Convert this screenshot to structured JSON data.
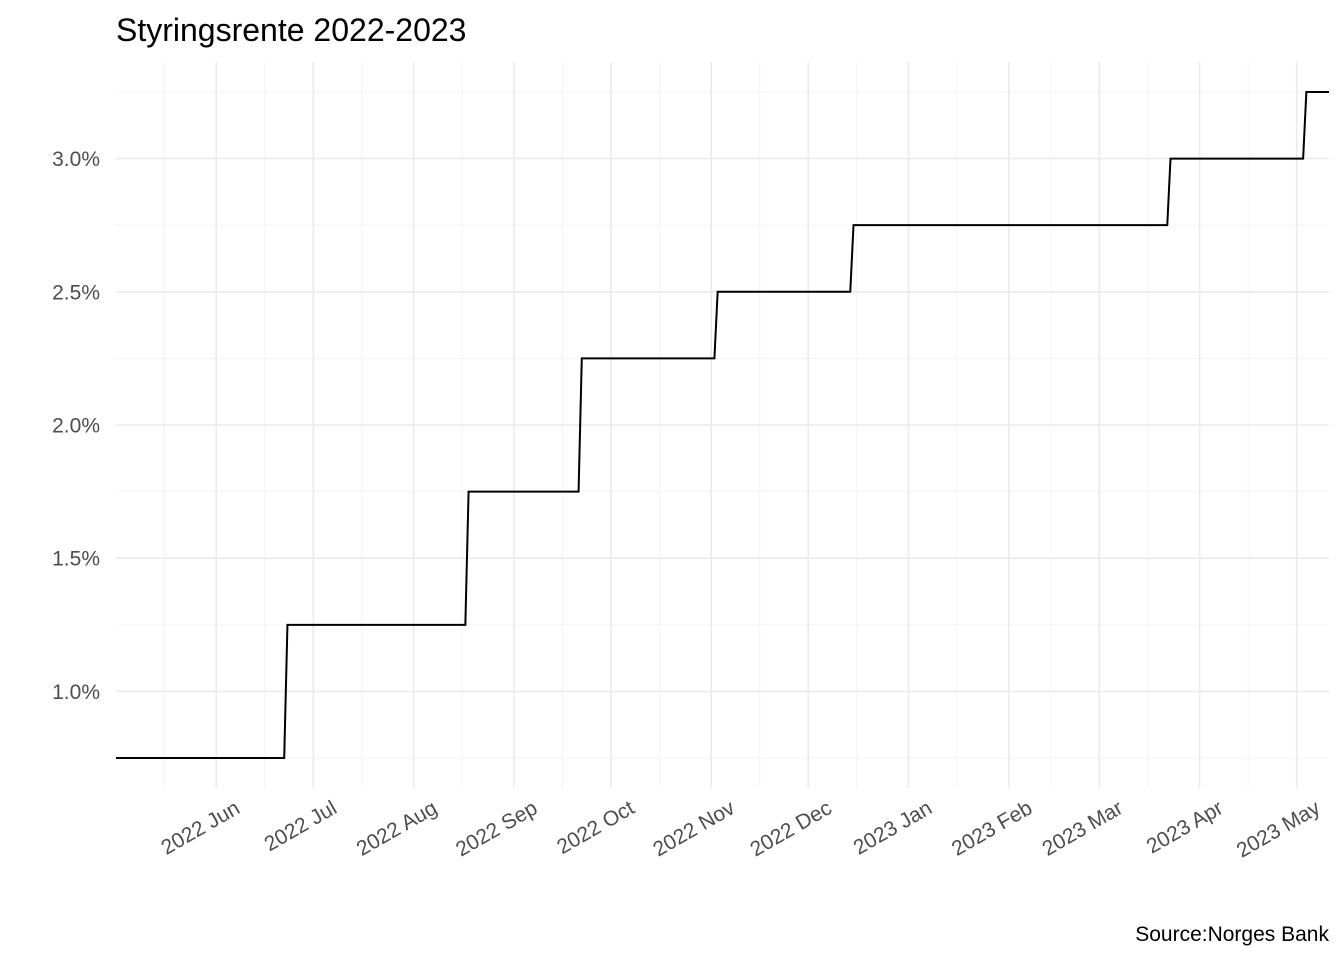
{
  "chart_data": {
    "type": "line",
    "title": "Styringsrente 2022-2023",
    "caption": "Source:Norges Bank",
    "xlabel": "",
    "ylabel": "",
    "x_type": "date",
    "xlim": [
      "2022-05-01",
      "2023-05-11"
    ],
    "ylim": [
      0.6375,
      3.3625
    ],
    "y_ticks": [
      1.0,
      1.5,
      2.0,
      2.5,
      3.0
    ],
    "y_tick_labels": [
      "1.0%",
      "1.5%",
      "2.0%",
      "2.5%",
      "3.0%"
    ],
    "y_minor_ticks": [
      0.75,
      1.25,
      1.75,
      2.25,
      2.75,
      3.25
    ],
    "x_ticks": [
      "2022-06-01",
      "2022-07-01",
      "2022-08-01",
      "2022-09-01",
      "2022-10-01",
      "2022-11-01",
      "2022-12-01",
      "2023-01-01",
      "2023-02-01",
      "2023-03-01",
      "2023-04-01",
      "2023-05-01"
    ],
    "x_tick_labels": [
      "2022 Jun",
      "2022 Jul",
      "2022 Aug",
      "2022 Sep",
      "2022 Oct",
      "2022 Nov",
      "2022 Dec",
      "2023 Jan",
      "2023 Feb",
      "2023 Mar",
      "2023 Apr",
      "2023 May"
    ],
    "x_minor_ticks": [
      "2022-05-16",
      "2022-06-16",
      "2022-07-16",
      "2022-08-16",
      "2022-09-16",
      "2022-10-16",
      "2022-11-16",
      "2022-12-16",
      "2023-01-16",
      "2023-02-14",
      "2023-03-16",
      "2023-04-16"
    ],
    "grid": true,
    "legend": "none",
    "series": [
      {
        "color": "#000000",
        "points": [
          {
            "x": "2022-05-01",
            "y": 0.75
          },
          {
            "x": "2022-06-22",
            "y": 0.75
          },
          {
            "x": "2022-06-23",
            "y": 1.25
          },
          {
            "x": "2022-08-17",
            "y": 1.25
          },
          {
            "x": "2022-08-18",
            "y": 1.75
          },
          {
            "x": "2022-09-21",
            "y": 1.75
          },
          {
            "x": "2022-09-22",
            "y": 2.25
          },
          {
            "x": "2022-11-02",
            "y": 2.25
          },
          {
            "x": "2022-11-03",
            "y": 2.5
          },
          {
            "x": "2022-12-14",
            "y": 2.5
          },
          {
            "x": "2022-12-15",
            "y": 2.75
          },
          {
            "x": "2023-03-22",
            "y": 2.75
          },
          {
            "x": "2023-03-23",
            "y": 3.0
          },
          {
            "x": "2023-05-03",
            "y": 3.0
          },
          {
            "x": "2023-05-04",
            "y": 3.25
          },
          {
            "x": "2023-05-11",
            "y": 3.25
          }
        ]
      }
    ]
  }
}
